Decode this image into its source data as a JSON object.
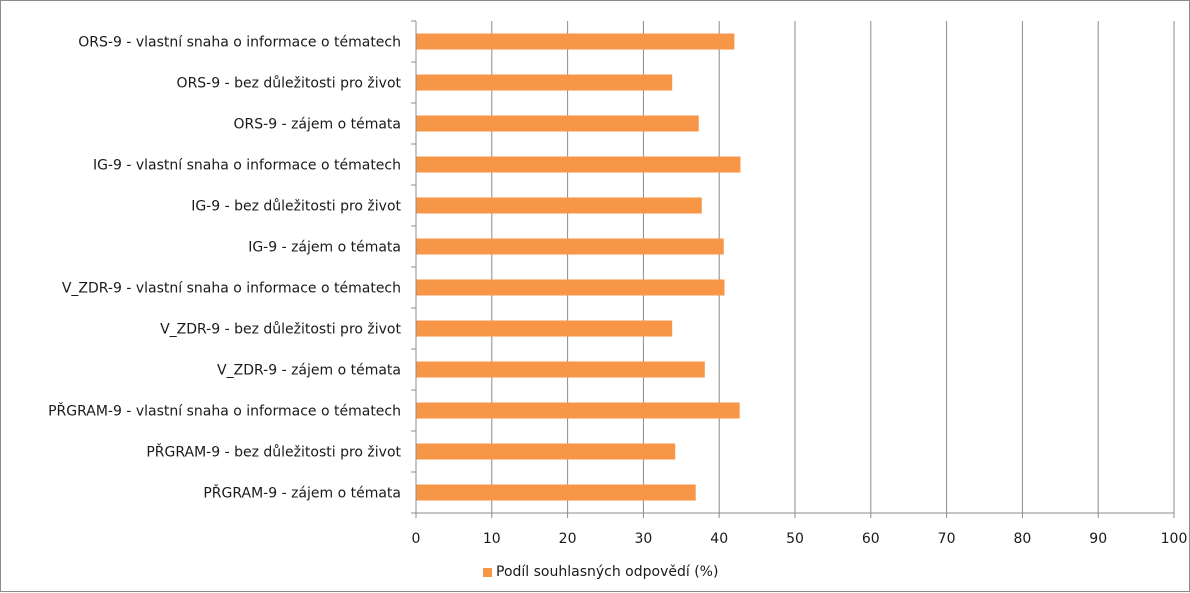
{
  "chart_data": {
    "type": "bar",
    "orientation": "horizontal",
    "categories": [
      "ORS-9 - vlastní snaha o informace o tématech",
      "ORS-9 - bez důležitosti pro život",
      "ORS-9 - zájem o témata",
      "IG-9 - vlastní snaha o informace o tématech",
      "IG-9 - bez důležitosti pro život",
      "IG-9 - zájem o témata",
      "V_ZDR-9 - vlastní snaha o informace o tématech",
      "V_ZDR-9 - bez důležitosti pro život",
      "V_ZDR-9 - zájem o témata",
      "PŘGRAM-9 - vlastní snaha o informace o tématech",
      "PŘGRAM-9 - bez důležitosti pro život",
      "PŘGRAM-9 - zájem o témata"
    ],
    "series": [
      {
        "name": "Podíl souhlasných odpovědí (%)",
        "color": "#f79646",
        "values": [
          42.0,
          33.8,
          37.3,
          42.8,
          37.7,
          40.6,
          40.7,
          33.8,
          38.1,
          42.7,
          34.2,
          36.9
        ]
      }
    ],
    "xlim": [
      0,
      100
    ],
    "xticks": [
      "0",
      "10",
      "20",
      "30",
      "40",
      "50",
      "60",
      "70",
      "80",
      "90",
      "100"
    ],
    "grid": "vertical",
    "legend_position": "bottom"
  }
}
